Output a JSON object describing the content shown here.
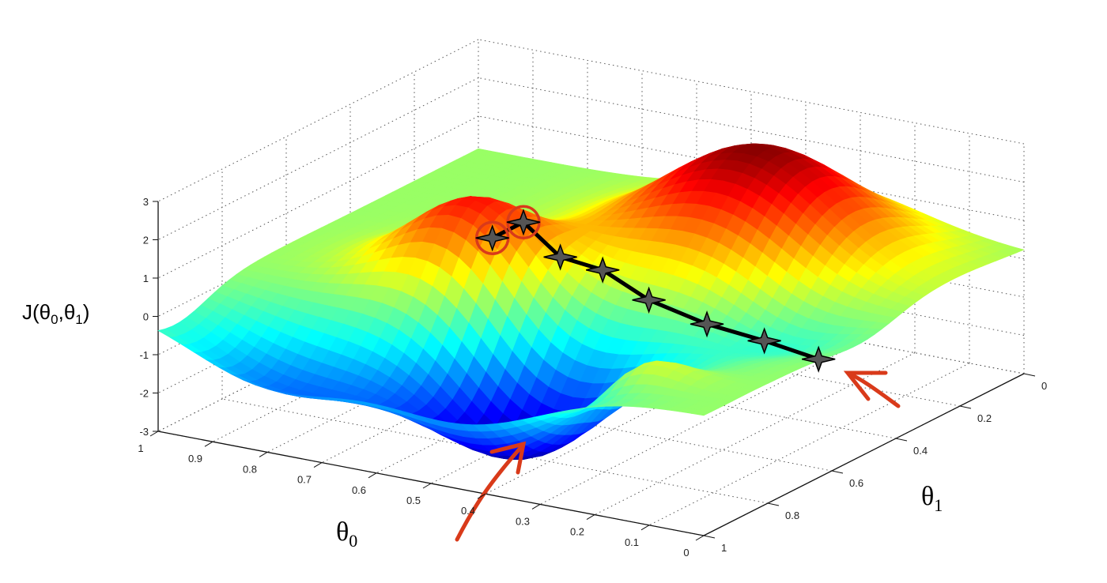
{
  "chart_data": {
    "type": "surface3d",
    "title": "",
    "xlabel": {
      "symbol": "θ",
      "sub": "0"
    },
    "ylabel": {
      "symbol": "θ",
      "sub": "1"
    },
    "zlabel": {
      "prefix": "J(θ",
      "sub0": "0",
      "mid": ",θ",
      "sub1": "1",
      "suffix": ")"
    },
    "xlim": [
      0,
      1
    ],
    "ylim": [
      0,
      1
    ],
    "zlim": [
      -3,
      3
    ],
    "x_ticks": [
      "0",
      "0.1",
      "0.2",
      "0.3",
      "0.4",
      "0.5",
      "0.6",
      "0.7",
      "0.8",
      "0.9",
      "1"
    ],
    "y_ticks": [
      "0",
      "0.2",
      "0.4",
      "0.6",
      "0.8",
      "1"
    ],
    "z_ticks": [
      "-3",
      "-2",
      "-1",
      "0",
      "1",
      "2",
      "3"
    ],
    "grid": true,
    "colormap": "jet",
    "surface_features": [
      {
        "kind": "peak",
        "theta0": 0.35,
        "theta1": 0.24,
        "J": 3.0
      },
      {
        "kind": "peak",
        "theta0": 0.66,
        "theta1": 0.59,
        "J": 2.5
      },
      {
        "kind": "minimum",
        "theta0": 0.45,
        "theta1": 0.81,
        "J": -3.0
      }
    ],
    "descent_path": [
      {
        "theta0": 0.54,
        "theta1": 0.74,
        "J": 2.2
      },
      {
        "theta0": 0.53,
        "theta1": 0.66,
        "J": 2.3
      },
      {
        "theta0": 0.48,
        "theta1": 0.63,
        "J": 1.4
      },
      {
        "theta0": 0.42,
        "theta1": 0.6,
        "J": 1.1
      },
      {
        "theta0": 0.35,
        "theta1": 0.575,
        "J": 0.4
      },
      {
        "theta0": 0.27,
        "theta1": 0.53,
        "J": -0.2
      },
      {
        "theta0": 0.2,
        "theta1": 0.47,
        "J": -0.7
      },
      {
        "theta0": 0.13,
        "theta1": 0.42,
        "J": -1.2
      }
    ],
    "annotations": {
      "circle_color": "#d93a1a",
      "arrow_color": "#d93a1a",
      "path_color": "#000000"
    }
  }
}
